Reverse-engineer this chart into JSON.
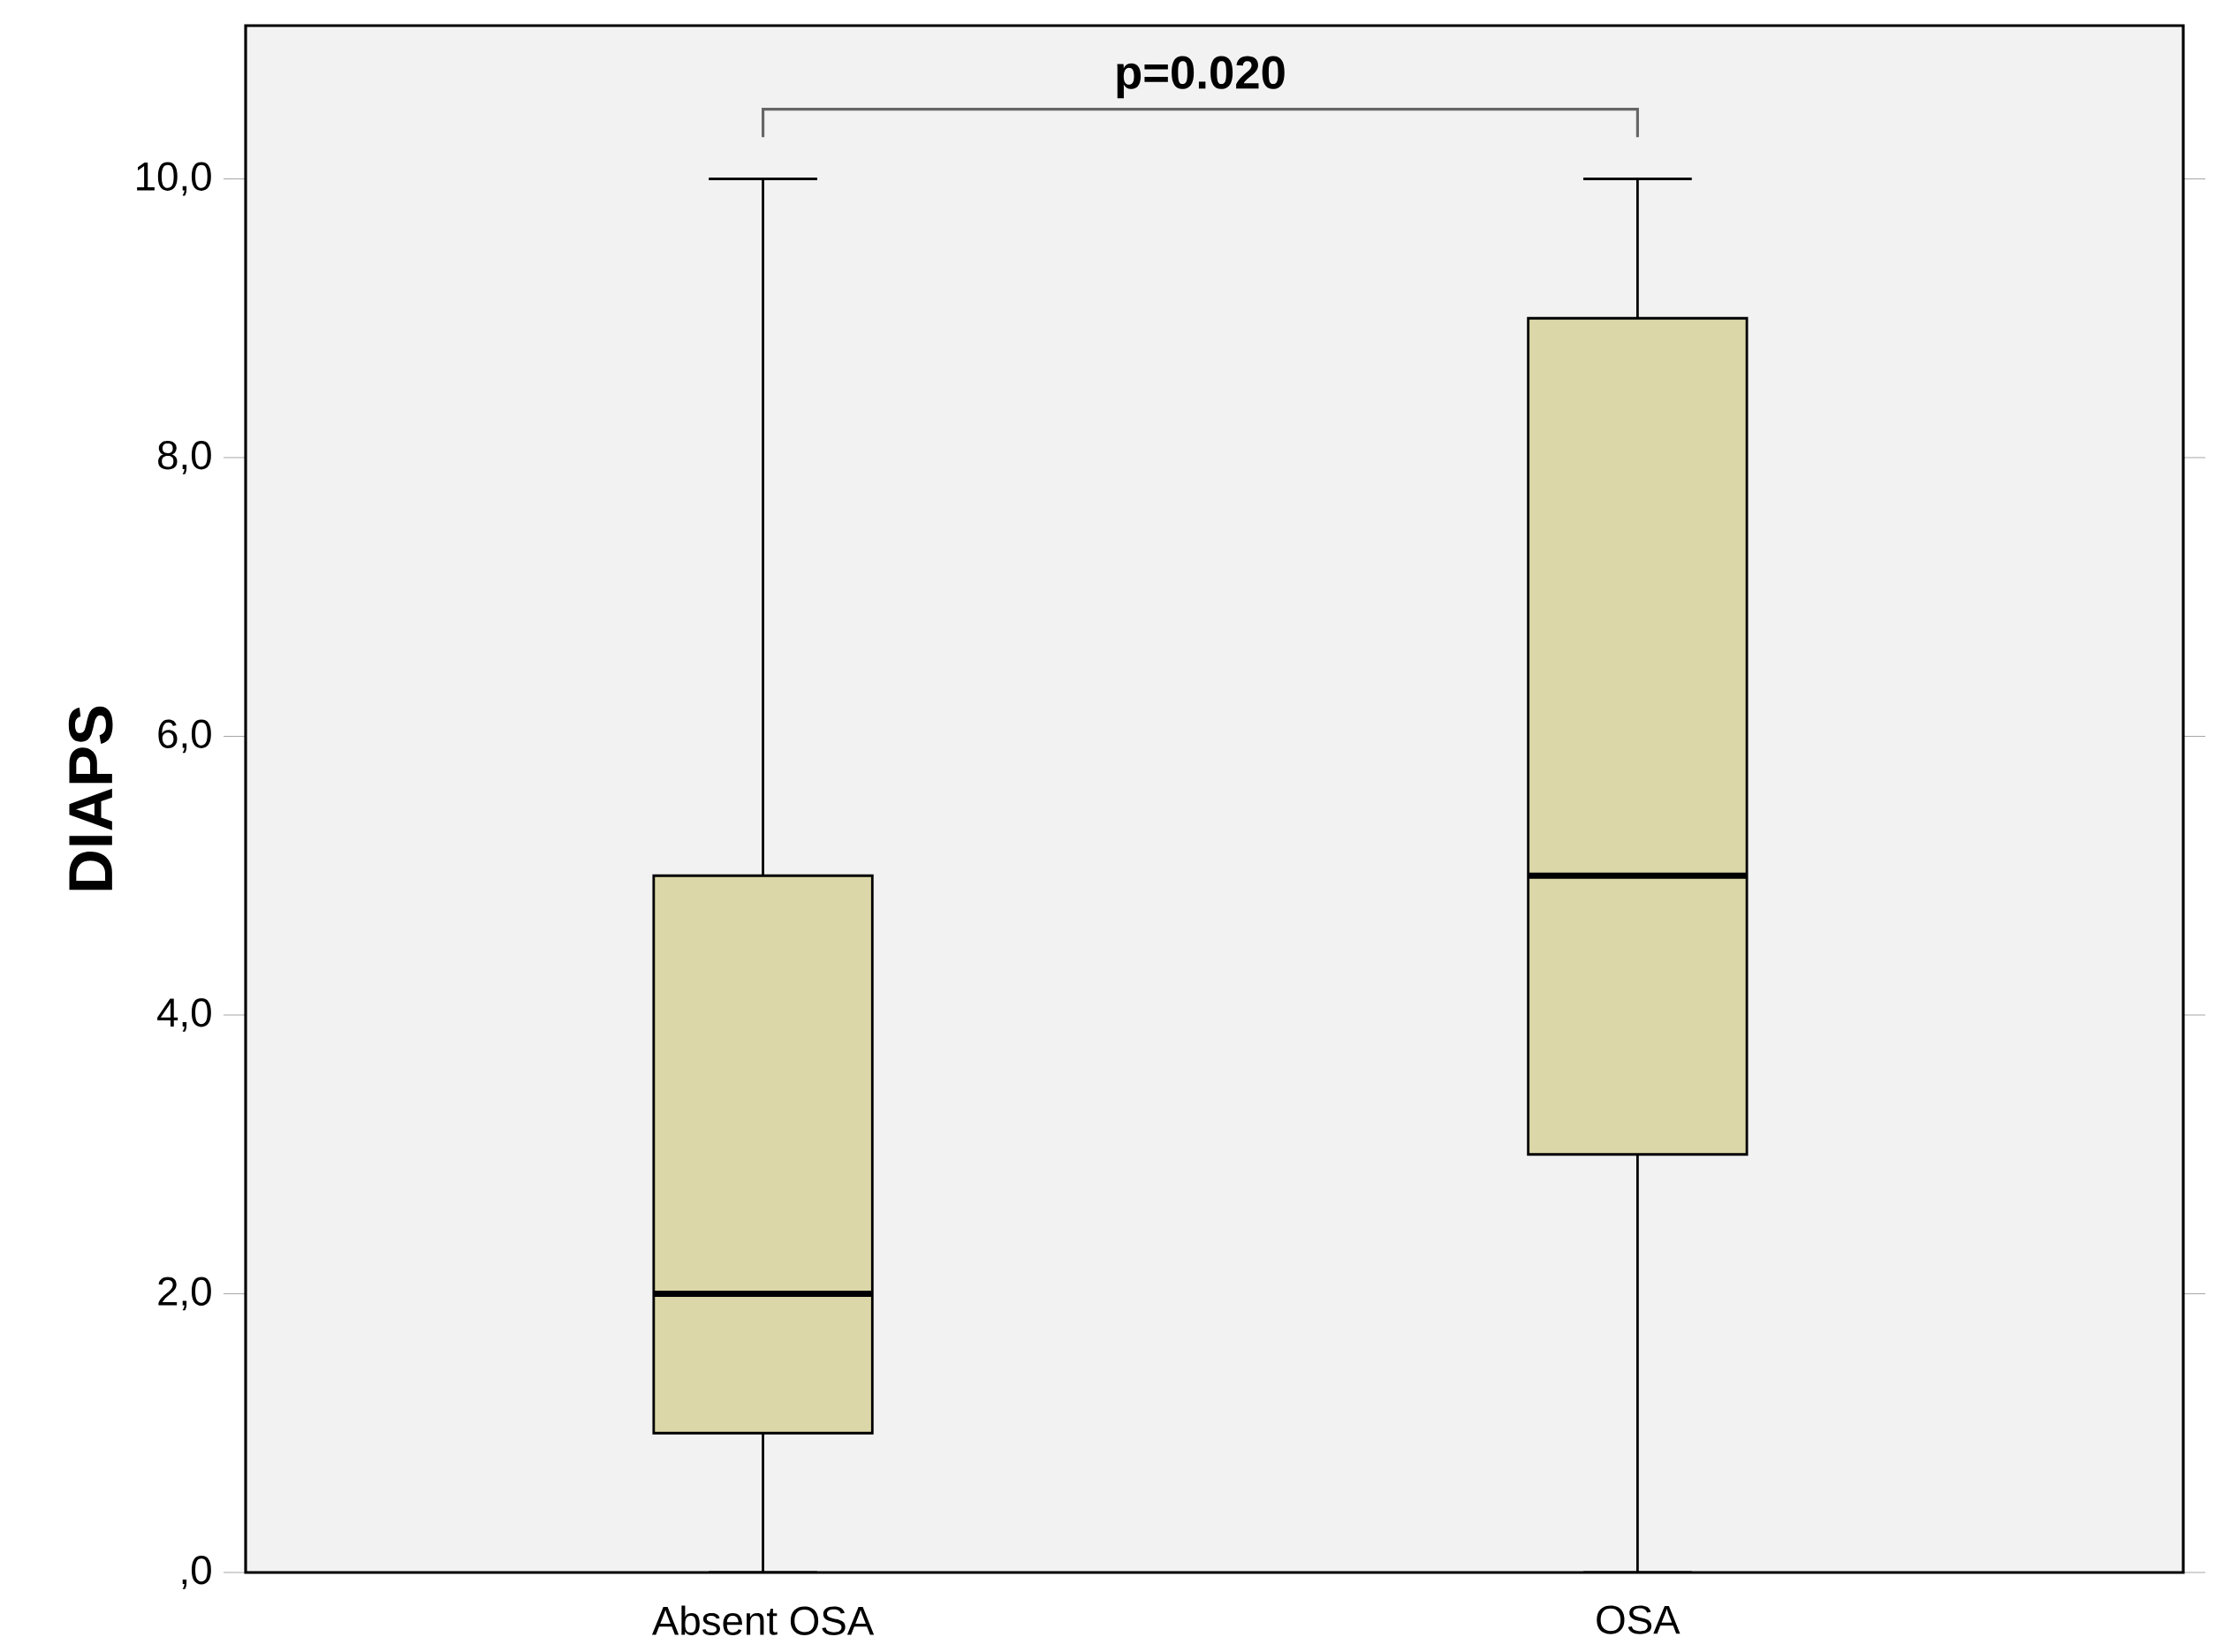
{
  "chart_data": {
    "type": "box",
    "ylabel": "DIAPS",
    "categories": [
      "Absent OSA",
      "OSA"
    ],
    "boxes": [
      {
        "low": 0,
        "q1": 1,
        "median": 2,
        "q3": 5,
        "high": 10
      },
      {
        "low": 0,
        "q1": 3,
        "median": 5,
        "q3": 9,
        "high": 10
      }
    ],
    "color": "#dcd7a8",
    "ylim": [
      0,
      11.1
    ],
    "yticks": [
      {
        "value": 0,
        "label": ",0"
      },
      {
        "value": 2,
        "label": "2,0"
      },
      {
        "value": 4,
        "label": "4,0"
      },
      {
        "value": 6,
        "label": "6,0"
      },
      {
        "value": 8,
        "label": "8,0"
      },
      {
        "value": 10,
        "label": "10,0"
      }
    ],
    "annotations": [
      "p=0.020"
    ],
    "grid": false
  }
}
